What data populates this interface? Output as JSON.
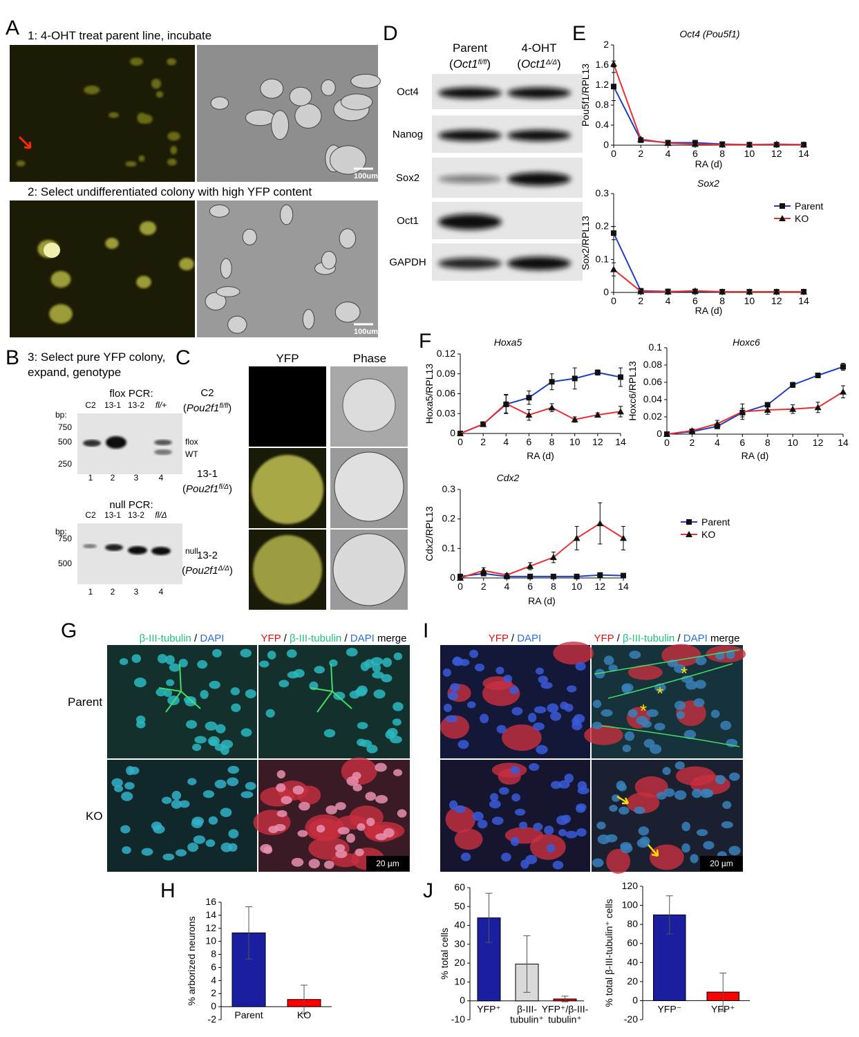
{
  "panels": {
    "A": {
      "letter": "A",
      "step1": "1: 4-OHT treat parent line, incubate",
      "step2": "2: Select undifferentiated colony with high YFP content",
      "scale": [
        "100um",
        "100um"
      ]
    },
    "B": {
      "letter": "B",
      "step3": [
        "3: Select pure YFP colony,",
        "expand, genotype"
      ],
      "flox": {
        "title": "flox PCR:",
        "lanes": [
          "C2",
          "13-1",
          "13-2",
          "fl/+"
        ],
        "bp": "bp:",
        "markers": [
          "750",
          "500",
          "250"
        ],
        "bands": [
          "flox",
          "WT"
        ],
        "numbers": [
          "1",
          "2",
          "3",
          "4"
        ]
      },
      "null": {
        "title": "null PCR:",
        "lanes": [
          "C2",
          "13-1",
          "13-2",
          "fl/Δ"
        ],
        "bp": "bp:",
        "markers": [
          "750",
          "500"
        ],
        "bands": [
          "null"
        ],
        "numbers": [
          "1",
          "2",
          "3",
          "4"
        ]
      }
    },
    "C": {
      "letter": "C",
      "columns": [
        "YFP",
        "Phase"
      ],
      "rows": [
        {
          "clone": "C2",
          "genotype": [
            "(",
            "Pou2f1",
            "fl/fl",
            ")"
          ]
        },
        {
          "clone": "13-1",
          "genotype": [
            "(",
            "Pou2f1",
            "fl/Δ",
            ")"
          ]
        },
        {
          "clone": "13-2",
          "genotype": [
            "(",
            "Pou2f1",
            "Δ/Δ",
            ")"
          ]
        }
      ]
    },
    "D": {
      "letter": "D",
      "columns": [
        {
          "name": "Parent",
          "genotype": [
            "(",
            "Oct1",
            "fl/fl",
            ")"
          ]
        },
        {
          "name": "4-OHT",
          "genotype": [
            "(",
            "Oct1",
            "Δ/Δ",
            ")"
          ]
        }
      ],
      "rows": [
        "Oct4",
        "Nanog",
        "Sox2",
        "Oct1",
        "GAPDH"
      ]
    },
    "E": {
      "letter": "E"
    },
    "F": {
      "letter": "F"
    },
    "G": {
      "letter": "G",
      "rows": [
        "Parent",
        "KO"
      ],
      "scale": "20 µm",
      "left": [
        {
          "text": "β-III-tubulin",
          "color": "#22c07a"
        },
        {
          "text": " / ",
          "color": "#000000"
        },
        {
          "text": "DAPI",
          "color": "#2a6fd6"
        }
      ],
      "right": [
        {
          "text": "YFP",
          "color": "#e01010"
        },
        {
          "text": " / ",
          "color": "#000000"
        },
        {
          "text": "β-III-tubulin",
          "color": "#22c07a"
        },
        {
          "text": " / ",
          "color": "#000000"
        },
        {
          "text": "DAPI",
          "color": "#2a6fd6"
        },
        {
          "text": " merge",
          "color": "#000000"
        }
      ]
    },
    "H": {
      "letter": "H"
    },
    "I": {
      "letter": "I",
      "asterisks": [
        "*",
        "*",
        "*"
      ],
      "scale": "20 µm",
      "left": [
        {
          "text": "YFP",
          "color": "#e01010"
        },
        {
          "text": " / ",
          "color": "#000000"
        },
        {
          "text": "DAPI",
          "color": "#2a6fd6"
        }
      ],
      "right": [
        {
          "text": "YFP",
          "color": "#e01010"
        },
        {
          "text": " / ",
          "color": "#000000"
        },
        {
          "text": "β-III-tubulin",
          "color": "#22c07a"
        },
        {
          "text": " / ",
          "color": "#000000"
        },
        {
          "text": "DAPI",
          "color": "#2a6fd6"
        },
        {
          "text": " merge",
          "color": "#000000"
        }
      ]
    },
    "J": {
      "letter": "J"
    }
  },
  "chart_data": [
    {
      "type": "line",
      "title": "Oct4 (Pou5f1)",
      "x_label": "RA (d)",
      "y_label": "Pou5f1/RPL13",
      "x": [
        0,
        2,
        4,
        6,
        8,
        10,
        12,
        14
      ],
      "xlim": [
        0,
        14
      ],
      "xticks": [
        0,
        2,
        4,
        6,
        8,
        10,
        12,
        14
      ],
      "ylim": [
        0,
        2
      ],
      "yticks": [
        0,
        0.4,
        0.8,
        1.2,
        1.6,
        2
      ],
      "series": [
        {
          "name": "Parent",
          "color": "#1f3fbf",
          "marker": "square",
          "values": [
            1.17,
            0.1,
            0.05,
            0.05,
            0.02,
            0.01,
            0.01,
            0.01
          ],
          "errors": [
            0.28,
            0.02,
            0.01,
            0.01,
            0,
            0,
            0,
            0
          ]
        },
        {
          "name": "KO",
          "color": "#e83030",
          "marker": "triangle",
          "values": [
            1.62,
            0.12,
            0.04,
            0.02,
            0.01,
            0.01,
            0.02,
            0.01
          ],
          "errors": [
            0.06,
            0.03,
            0.01,
            0.01,
            0,
            0,
            0,
            0
          ]
        }
      ],
      "legend": false
    },
    {
      "type": "line",
      "title": "Sox2",
      "x_label": "RA (d)",
      "y_label": "Sox2/RPL13",
      "x": [
        0,
        2,
        4,
        6,
        8,
        10,
        12,
        14
      ],
      "xlim": [
        0,
        14
      ],
      "xticks": [
        0,
        2,
        4,
        6,
        8,
        10,
        12,
        14
      ],
      "ylim": [
        0,
        0.3
      ],
      "yticks": [
        0,
        0.1,
        0.2,
        0.3
      ],
      "series": [
        {
          "name": "Parent",
          "color": "#1f3fbf",
          "marker": "square",
          "values": [
            0.18,
            0.005,
            0.003,
            0.003,
            0.002,
            0.002,
            0.002,
            0.002
          ],
          "errors": [
            0.02,
            0.002,
            0,
            0.003,
            0,
            0,
            0,
            0
          ]
        },
        {
          "name": "KO",
          "color": "#e83030",
          "marker": "triangle",
          "values": [
            0.07,
            0.003,
            0.002,
            0.005,
            0.002,
            0.002,
            0.002,
            0.002
          ],
          "errors": [
            0.02,
            0,
            0,
            0,
            0,
            0,
            0,
            0
          ]
        }
      ],
      "legend": true
    },
    {
      "type": "line",
      "title": "Hoxa5",
      "x_label": "RA (d)",
      "y_label": "Hoxa5/RPL13",
      "x": [
        0,
        2,
        4,
        6,
        8,
        10,
        12,
        14
      ],
      "xlim": [
        0,
        14
      ],
      "xticks": [
        0,
        2,
        4,
        6,
        8,
        10,
        12,
        14
      ],
      "ylim": [
        0,
        0.12
      ],
      "yticks": [
        0,
        0.03,
        0.06,
        0.09,
        0.12
      ],
      "series": [
        {
          "name": "Parent",
          "color": "#1f3fbf",
          "marker": "square",
          "values": [
            0,
            0.014,
            0.044,
            0.054,
            0.078,
            0.083,
            0.092,
            0.085
          ],
          "errors": [
            0,
            0.002,
            0.014,
            0.01,
            0.012,
            0.016,
            0.004,
            0.014
          ]
        },
        {
          "name": "KO",
          "color": "#e83030",
          "marker": "triangle",
          "values": [
            0,
            0.014,
            0.045,
            0.028,
            0.039,
            0.021,
            0.028,
            0.033
          ],
          "errors": [
            0,
            0.002,
            0.014,
            0.008,
            0.006,
            0.004,
            0.003,
            0.008
          ]
        }
      ],
      "legend": false
    },
    {
      "type": "line",
      "title": "Hoxc6",
      "x_label": "RA (d)",
      "y_label": "Hoxc6/RPL13",
      "x": [
        0,
        2,
        4,
        6,
        8,
        10,
        12,
        14
      ],
      "xlim": [
        0,
        14
      ],
      "xticks": [
        0,
        2,
        4,
        6,
        8,
        10,
        12,
        14
      ],
      "ylim": [
        0,
        0.1
      ],
      "yticks": [
        0,
        0.02,
        0.04,
        0.06,
        0.08,
        0.1
      ],
      "series": [
        {
          "name": "Parent",
          "color": "#1f3fbf",
          "marker": "square",
          "values": [
            0,
            0.003,
            0.009,
            0.025,
            0.034,
            0.057,
            0.068,
            0.078
          ],
          "errors": [
            0,
            0.001,
            0.002,
            0.005,
            0.002,
            0.003,
            0.002,
            0.004
          ]
        },
        {
          "name": "KO",
          "color": "#e83030",
          "marker": "triangle",
          "values": [
            0,
            0.004,
            0.012,
            0.026,
            0.028,
            0.029,
            0.031,
            0.049
          ],
          "errors": [
            0,
            0.002,
            0.004,
            0.009,
            0.005,
            0.005,
            0.006,
            0.007
          ]
        }
      ],
      "legend": false
    },
    {
      "type": "line",
      "title": "Cdx2",
      "x_label": "RA (d)",
      "y_label": "Cdx2/RPL13",
      "x": [
        0,
        2,
        4,
        6,
        8,
        10,
        12,
        14
      ],
      "xlim": [
        0,
        14
      ],
      "xticks": [
        0,
        2,
        4,
        6,
        8,
        10,
        12,
        14
      ],
      "ylim": [
        0,
        0.3
      ],
      "yticks": [
        0,
        0.1,
        0.2,
        0.3
      ],
      "series": [
        {
          "name": "Parent",
          "color": "#1f3fbf",
          "marker": "square",
          "values": [
            0.005,
            0.015,
            0.005,
            0.005,
            0.005,
            0.005,
            0.01,
            0.008
          ],
          "errors": [
            0,
            0.005,
            0,
            0,
            0,
            0,
            0,
            0
          ]
        },
        {
          "name": "KO",
          "color": "#e83030",
          "marker": "triangle",
          "values": [
            0,
            0.025,
            0.01,
            0.04,
            0.07,
            0.135,
            0.185,
            0.135
          ],
          "errors": [
            0.005,
            0.01,
            0.005,
            0.012,
            0.018,
            0.04,
            0.07,
            0.04
          ]
        }
      ],
      "legend": true
    },
    {
      "type": "bar",
      "y_label": "% arborized neurons",
      "categories": [
        [
          "Parent"
        ],
        [
          "KO"
        ]
      ],
      "values": [
        11.3,
        1.1
      ],
      "errors": [
        4,
        2.2
      ],
      "colors": [
        "#1a1fa0",
        "#ff0000"
      ],
      "ylim": [
        -2,
        16
      ],
      "yticks": [
        -2,
        0,
        2,
        4,
        6,
        8,
        10,
        12,
        14,
        16
      ]
    },
    {
      "type": "bar",
      "y_label": "% total cells",
      "categories": [
        [
          "YFP⁺"
        ],
        [
          "β-III-",
          "tubulin⁺"
        ],
        [
          "YFP⁺/β-III-",
          "tubulin⁺"
        ]
      ],
      "values": [
        44,
        19.5,
        1
      ],
      "errors": [
        13,
        15,
        1.5
      ],
      "colors": [
        "#1a1fa0",
        "#d9d9d9",
        "#ff0000"
      ],
      "ylim": [
        -10,
        60
      ],
      "yticks": [
        -10,
        0,
        10,
        20,
        30,
        40,
        50,
        60
      ]
    },
    {
      "type": "bar",
      "y_label": "% total β-III-tubulin⁺ cells",
      "categories": [
        [
          "YFP⁻"
        ],
        [
          "YFP⁺"
        ]
      ],
      "values": [
        90,
        9
      ],
      "errors": [
        20,
        20
      ],
      "colors": [
        "#1a1fa0",
        "#ff0000"
      ],
      "ylim": [
        -20,
        120
      ],
      "yticks": [
        -20,
        0,
        20,
        40,
        60,
        80,
        100,
        120
      ]
    }
  ]
}
